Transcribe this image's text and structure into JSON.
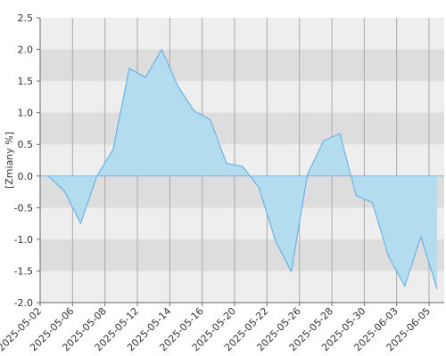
{
  "chart_data": {
    "type": "area",
    "y_label": "[Zmiany %]",
    "values": [
      0.0,
      -0.24,
      -0.75,
      0.0,
      0.42,
      1.7,
      1.56,
      2.0,
      1.42,
      1.03,
      0.89,
      0.2,
      0.15,
      -0.18,
      -1.01,
      -1.51,
      0.03,
      0.56,
      0.67,
      -0.31,
      -0.42,
      -1.27,
      -1.74,
      -0.96,
      -1.79
    ],
    "xticks": [
      "2025-05-02",
      "2025-05-06",
      "2025-05-08",
      "2025-05-12",
      "2025-05-14",
      "2025-05-16",
      "2025-05-20",
      "2025-05-22",
      "2025-05-26",
      "2025-05-28",
      "2025-05-30",
      "2025-06-03",
      "2025-06-05"
    ],
    "ylim": [
      -2.0,
      2.5
    ],
    "yticks": [
      {
        "value": -2.0,
        "label": "-2.0"
      },
      {
        "value": -1.5,
        "label": "-1.5"
      },
      {
        "value": -1.0,
        "label": "-1.0"
      },
      {
        "value": -0.5,
        "label": "-0.5"
      },
      {
        "value": 0.0,
        "label": "0.0"
      },
      {
        "value": 0.5,
        "label": "0.5"
      },
      {
        "value": 1.0,
        "label": "1.0"
      },
      {
        "value": 1.5,
        "label": "1.5"
      },
      {
        "value": 2.0,
        "label": "2.0"
      },
      {
        "value": 2.5,
        "label": "2.5"
      }
    ],
    "color": "#5aaae6",
    "fill": "#b3dcee",
    "grid": true
  }
}
